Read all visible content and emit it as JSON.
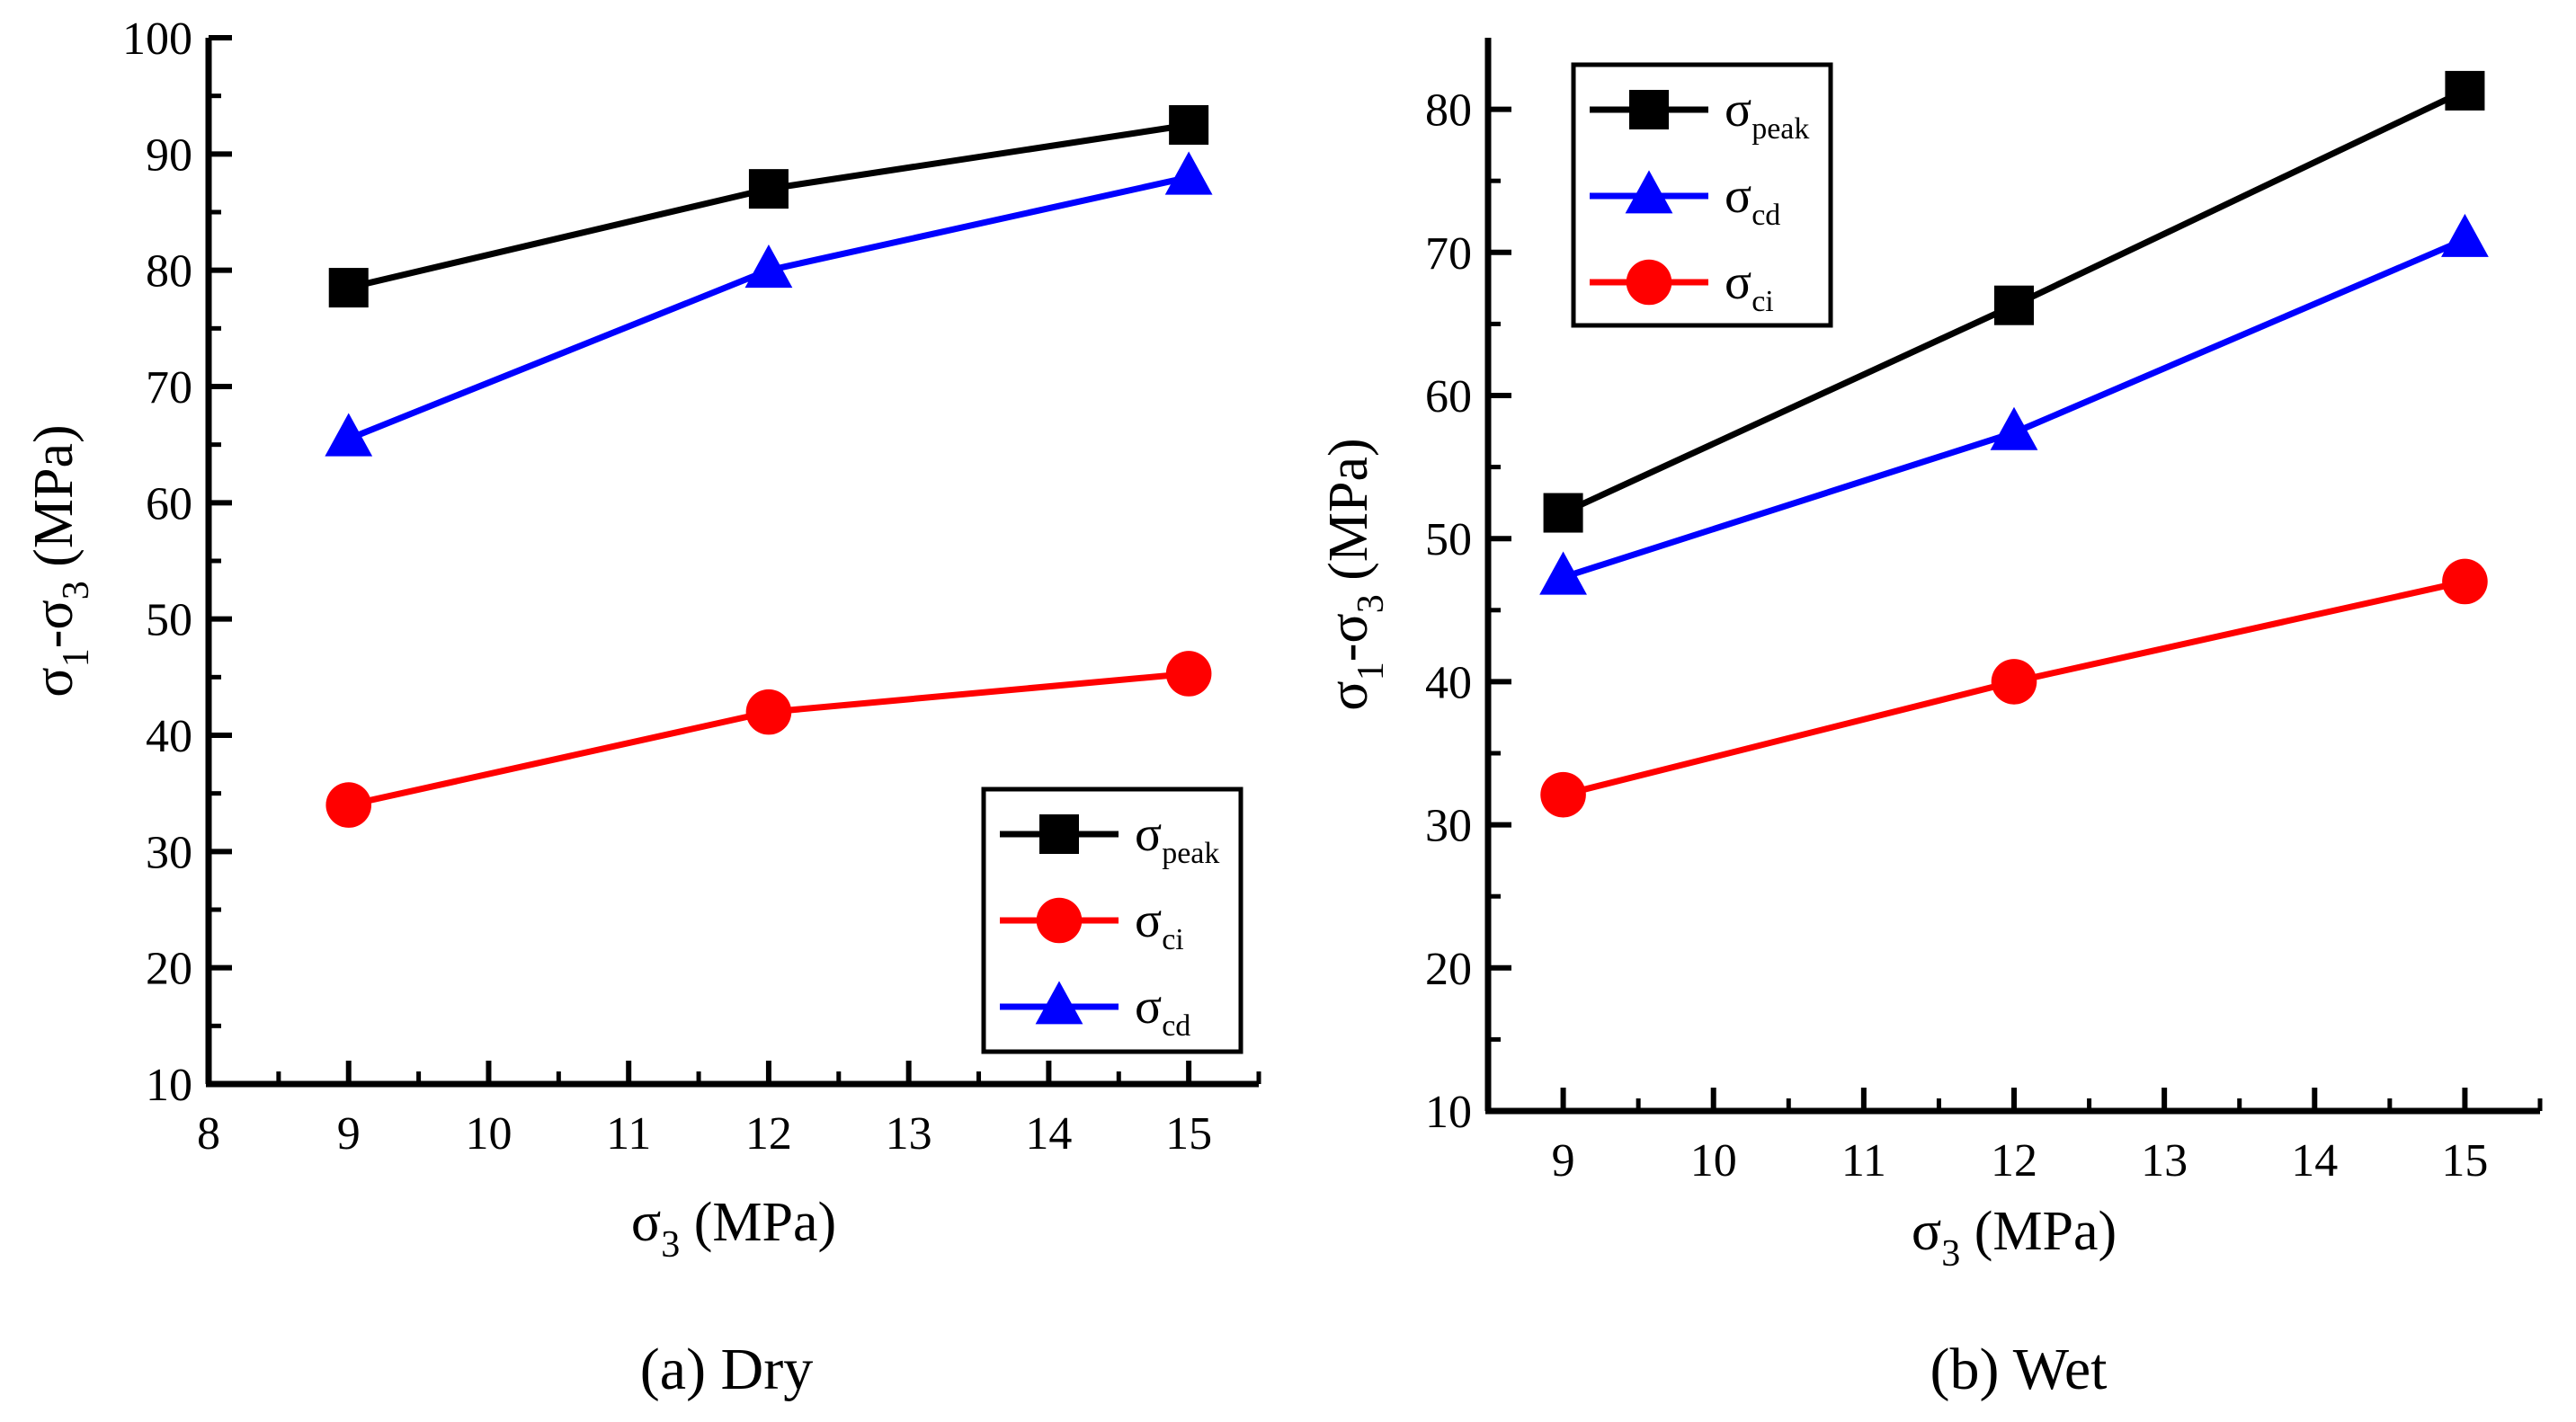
{
  "chart_data": [
    {
      "type": "line",
      "caption": "(a) Dry",
      "xlabel": {
        "symbol": "σ",
        "sub": "3",
        "rest": " (MPa)"
      },
      "ylabel": {
        "symbol1": "σ",
        "sub1": "1",
        "mid": "-σ",
        "sub2": "3",
        "rest": " (MPa)"
      },
      "xlim": [
        8,
        15.5
      ],
      "ylim": [
        10,
        100
      ],
      "xticks": [
        8,
        9,
        10,
        11,
        12,
        13,
        14,
        15
      ],
      "yticks": [
        10,
        20,
        30,
        40,
        50,
        60,
        70,
        80,
        90,
        100
      ],
      "legend_position": "bottom-right",
      "series": [
        {
          "key": "peak",
          "symbol": "σ",
          "sub": "peak",
          "color": "#000000",
          "marker": "square",
          "x": [
            9,
            12,
            15
          ],
          "y": [
            78.5,
            87,
            92.5
          ]
        },
        {
          "key": "ci",
          "symbol": "σ",
          "sub": "ci",
          "color": "#ff0000",
          "marker": "circle",
          "x": [
            9,
            12,
            15
          ],
          "y": [
            34,
            42,
            45.3
          ]
        },
        {
          "key": "cd",
          "symbol": "σ",
          "sub": "cd",
          "color": "#0000ff",
          "marker": "triangle",
          "x": [
            9,
            12,
            15
          ],
          "y": [
            65.5,
            80,
            88
          ]
        }
      ]
    },
    {
      "type": "line",
      "caption": "(b) Wet",
      "xlabel": {
        "symbol": "σ",
        "sub": "3",
        "rest": " (MPa)"
      },
      "ylabel": {
        "symbol1": "σ",
        "sub1": "1",
        "mid": "-σ",
        "sub2": "3",
        "rest": " (MPa)"
      },
      "xlim": [
        8.5,
        15.5
      ],
      "ylim": [
        10,
        85
      ],
      "xticks": [
        9,
        10,
        11,
        12,
        13,
        14,
        15
      ],
      "yticks": [
        10,
        20,
        30,
        40,
        50,
        60,
        70,
        80
      ],
      "legend_position": "top-left",
      "series": [
        {
          "key": "peak",
          "symbol": "σ",
          "sub": "peak",
          "color": "#000000",
          "marker": "square",
          "x": [
            9,
            12,
            15
          ],
          "y": [
            51.8,
            66.3,
            81.3
          ]
        },
        {
          "key": "cd",
          "symbol": "σ",
          "sub": "cd",
          "color": "#0000ff",
          "marker": "triangle",
          "x": [
            9,
            12,
            15
          ],
          "y": [
            47.3,
            57.4,
            70.9
          ]
        },
        {
          "key": "ci",
          "symbol": "σ",
          "sub": "ci",
          "color": "#ff0000",
          "marker": "circle",
          "x": [
            9,
            12,
            15
          ],
          "y": [
            32.1,
            40,
            47
          ]
        }
      ]
    }
  ]
}
